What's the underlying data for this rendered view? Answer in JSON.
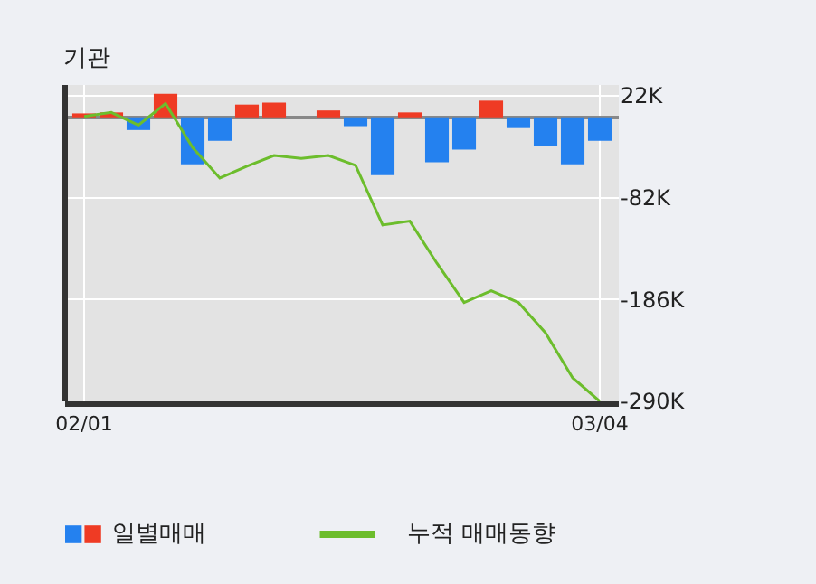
{
  "chart_data": {
    "type": "bar",
    "title": "기관",
    "categories": [
      "02/01",
      null,
      null,
      null,
      null,
      null,
      null,
      null,
      null,
      null,
      null,
      null,
      null,
      null,
      null,
      null,
      null,
      null,
      null,
      "03/04"
    ],
    "series": [
      {
        "name": "일별매매",
        "colors": [
          "#ef3b24",
          "#ef3b24",
          "#2481ef",
          "#ef3b24",
          "#2481ef",
          "#2481ef",
          "#ef3b24",
          "#ef3b24",
          "#ef3b24",
          "#ef3b24",
          "#2481ef",
          "#2481ef",
          "#ef3b24",
          "#2481ef",
          "#2481ef",
          "#ef3b24",
          "#2481ef",
          "#2481ef",
          "#2481ef",
          "#2481ef"
        ],
        "values": [
          4000,
          5000,
          -13000,
          24000,
          -48000,
          -24000,
          13000,
          15000,
          0,
          7000,
          -9000,
          -59000,
          5000,
          -46000,
          -33000,
          17000,
          -11000,
          -29000,
          -48000,
          -24000
        ]
      },
      {
        "name": "누적 매매동향",
        "type": "line",
        "color": "#6cbd2c",
        "values": [
          1000,
          5000,
          -8000,
          14000,
          -31000,
          -62000,
          -50000,
          -39000,
          -42000,
          -39000,
          -49000,
          -110000,
          -106000,
          -149000,
          -189000,
          -177000,
          -189000,
          -220000,
          -266000,
          -290000
        ]
      }
    ],
    "ylim": [
      -290000,
      33000
    ],
    "yticks": [
      {
        "value": 22000,
        "label": "22K"
      },
      {
        "value": -82000,
        "label": "-82K"
      },
      {
        "value": -186000,
        "label": "-186K"
      },
      {
        "value": -290000,
        "label": "-290K"
      }
    ],
    "grid": true,
    "legend": "bottom",
    "marker": "none",
    "line_style": "solid"
  }
}
